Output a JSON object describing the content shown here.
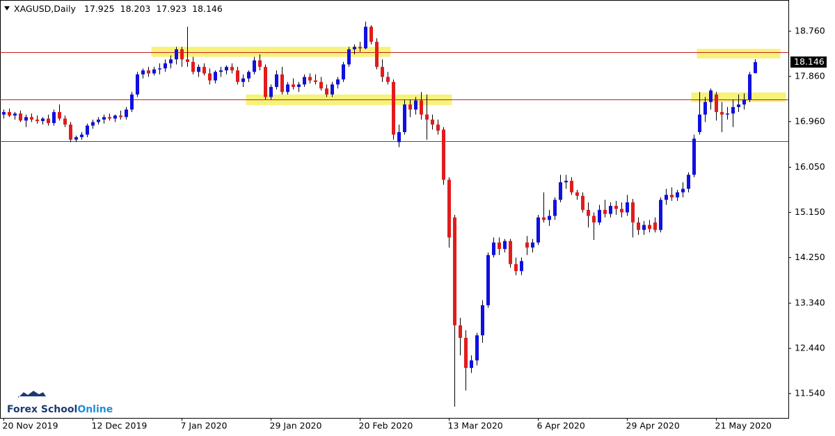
{
  "chart_data": {
    "type": "candlestick",
    "title": "XAGUSD,Daily",
    "categories": [
      "20 Nov 2019",
      null,
      null,
      null,
      null,
      null,
      null,
      null,
      null,
      null,
      null,
      null,
      null,
      null,
      null,
      null,
      "12 Dec 2019",
      null,
      null,
      null,
      null,
      null,
      null,
      null,
      null,
      null,
      null,
      null,
      null,
      null,
      null,
      null,
      "7 Jan 2020",
      null,
      null,
      null,
      null,
      null,
      null,
      null,
      null,
      null,
      null,
      null,
      null,
      null,
      null,
      null,
      "29 Jan 2020",
      null,
      null,
      null,
      null,
      null,
      null,
      null,
      null,
      null,
      null,
      null,
      null,
      null,
      null,
      null,
      "20 Feb 2020",
      null,
      null,
      null,
      null,
      null,
      null,
      null,
      null,
      null,
      null,
      null,
      null,
      null,
      null,
      null,
      "13 Mar 2020",
      null,
      null,
      null,
      null,
      null,
      null,
      null,
      null,
      null,
      null,
      null,
      null,
      null,
      null,
      null,
      "6 Apr 2020",
      null,
      null,
      null,
      null,
      null,
      null,
      null,
      null,
      null,
      null,
      null,
      null,
      null,
      null,
      null,
      "29 Apr 2020",
      null,
      null,
      null,
      null,
      null,
      null,
      null,
      null,
      null,
      null,
      null,
      null,
      null,
      null,
      null,
      "21 May 2020",
      null,
      null,
      null,
      null,
      null,
      null,
      null
    ],
    "ohlc": [
      [
        17.1,
        17.2,
        17.02,
        17.15
      ],
      [
        17.15,
        17.22,
        17.05,
        17.08
      ],
      [
        17.08,
        17.15,
        17.0,
        17.12
      ],
      [
        17.12,
        17.18,
        16.95,
        16.98
      ],
      [
        16.98,
        17.1,
        16.85,
        17.05
      ],
      [
        17.05,
        17.12,
        16.95,
        17.0
      ],
      [
        17.0,
        17.08,
        16.92,
        16.97
      ],
      [
        16.97,
        17.05,
        16.9,
        17.02
      ],
      [
        17.02,
        17.1,
        16.88,
        16.93
      ],
      [
        16.93,
        17.2,
        16.88,
        17.15
      ],
      [
        17.15,
        17.3,
        16.98,
        17.02
      ],
      [
        17.02,
        17.08,
        16.85,
        16.9
      ],
      [
        16.9,
        16.95,
        16.55,
        16.6
      ],
      [
        16.6,
        16.68,
        16.55,
        16.65
      ],
      [
        16.65,
        16.75,
        16.6,
        16.7
      ],
      [
        16.7,
        16.92,
        16.65,
        16.88
      ],
      [
        16.88,
        17.0,
        16.82,
        16.95
      ],
      [
        16.95,
        17.05,
        16.9,
        17.0
      ],
      [
        17.0,
        17.1,
        16.92,
        17.05
      ],
      [
        17.05,
        17.12,
        16.98,
        17.02
      ],
      [
        17.02,
        17.1,
        16.95,
        17.08
      ],
      [
        17.08,
        17.18,
        17.0,
        17.05
      ],
      [
        17.05,
        17.25,
        17.0,
        17.2
      ],
      [
        17.2,
        17.55,
        17.15,
        17.5
      ],
      [
        17.5,
        17.95,
        17.45,
        17.9
      ],
      [
        17.9,
        18.02,
        17.82,
        17.98
      ],
      [
        17.98,
        18.05,
        17.85,
        17.92
      ],
      [
        17.92,
        18.05,
        17.88,
        18.0
      ],
      [
        18.0,
        18.12,
        17.9,
        18.02
      ],
      [
        18.02,
        18.2,
        17.95,
        18.12
      ],
      [
        18.12,
        18.28,
        18.02,
        18.2
      ],
      [
        18.2,
        18.45,
        18.1,
        18.4
      ],
      [
        18.4,
        18.45,
        18.05,
        18.2
      ],
      [
        18.2,
        18.85,
        18.05,
        18.15
      ],
      [
        18.15,
        18.25,
        17.9,
        17.95
      ],
      [
        17.95,
        18.1,
        17.85,
        18.05
      ],
      [
        18.05,
        18.12,
        17.88,
        17.92
      ],
      [
        17.92,
        18.02,
        17.7,
        17.78
      ],
      [
        17.78,
        17.98,
        17.72,
        17.95
      ],
      [
        17.95,
        18.05,
        17.85,
        17.98
      ],
      [
        17.98,
        18.08,
        17.9,
        18.05
      ],
      [
        18.05,
        18.12,
        17.92,
        17.98
      ],
      [
        17.98,
        18.05,
        17.7,
        17.75
      ],
      [
        17.75,
        17.9,
        17.65,
        17.82
      ],
      [
        17.82,
        17.98,
        17.75,
        17.95
      ],
      [
        17.95,
        18.25,
        17.9,
        18.18
      ],
      [
        18.18,
        18.3,
        17.98,
        18.05
      ],
      [
        18.05,
        18.1,
        17.4,
        17.45
      ],
      [
        17.45,
        17.7,
        17.4,
        17.65
      ],
      [
        17.65,
        17.98,
        17.6,
        17.9
      ],
      [
        17.9,
        18.05,
        17.5,
        17.55
      ],
      [
        17.55,
        17.75,
        17.5,
        17.7
      ],
      [
        17.7,
        17.82,
        17.6,
        17.65
      ],
      [
        17.65,
        17.75,
        17.55,
        17.7
      ],
      [
        17.7,
        17.9,
        17.65,
        17.85
      ],
      [
        17.85,
        17.92,
        17.72,
        17.78
      ],
      [
        17.78,
        17.9,
        17.7,
        17.75
      ],
      [
        17.75,
        17.85,
        17.58,
        17.62
      ],
      [
        17.62,
        17.7,
        17.45,
        17.5
      ],
      [
        17.5,
        17.75,
        17.45,
        17.7
      ],
      [
        17.7,
        17.85,
        17.62,
        17.8
      ],
      [
        17.8,
        18.15,
        17.75,
        18.1
      ],
      [
        18.1,
        18.45,
        18.05,
        18.4
      ],
      [
        18.4,
        18.5,
        18.3,
        18.45
      ],
      [
        18.45,
        18.55,
        18.35,
        18.42
      ],
      [
        18.42,
        18.95,
        18.4,
        18.85
      ],
      [
        18.85,
        18.88,
        18.5,
        18.55
      ],
      [
        18.55,
        18.62,
        18.0,
        18.05
      ],
      [
        18.05,
        18.2,
        17.75,
        17.85
      ],
      [
        17.85,
        17.95,
        17.7,
        17.75
      ],
      [
        17.75,
        17.8,
        16.6,
        16.7
      ],
      [
        16.55,
        16.9,
        16.45,
        16.75
      ],
      [
        16.75,
        17.4,
        16.7,
        17.3
      ],
      [
        17.3,
        17.4,
        17.05,
        17.2
      ],
      [
        17.2,
        17.45,
        17.1,
        17.38
      ],
      [
        17.38,
        17.55,
        17.0,
        17.1
      ],
      [
        17.1,
        17.5,
        16.6,
        17.0
      ],
      [
        17.0,
        17.1,
        16.8,
        16.9
      ],
      [
        16.9,
        17.0,
        16.7,
        16.78
      ],
      [
        16.8,
        16.85,
        15.7,
        15.8
      ],
      [
        15.8,
        15.85,
        14.45,
        14.65
      ],
      [
        15.05,
        15.1,
        11.28,
        12.9
      ],
      [
        12.9,
        13.05,
        12.3,
        12.65
      ],
      [
        12.65,
        12.8,
        11.6,
        12.05
      ],
      [
        12.05,
        12.3,
        11.95,
        12.2
      ],
      [
        12.2,
        12.75,
        12.1,
        12.7
      ],
      [
        12.7,
        13.4,
        12.55,
        13.3
      ],
      [
        13.3,
        14.35,
        13.25,
        14.3
      ],
      [
        14.3,
        14.65,
        14.25,
        14.55
      ],
      [
        14.55,
        14.65,
        14.3,
        14.42
      ],
      [
        14.42,
        14.62,
        14.35,
        14.58
      ],
      [
        14.58,
        14.62,
        14.05,
        14.12
      ],
      [
        14.12,
        14.25,
        13.9,
        13.98
      ],
      [
        13.98,
        14.25,
        13.9,
        14.18
      ],
      [
        14.55,
        14.68,
        14.3,
        14.45
      ],
      [
        14.45,
        14.62,
        14.35,
        14.55
      ],
      [
        14.55,
        15.1,
        14.5,
        15.05
      ],
      [
        15.05,
        15.55,
        14.95,
        15.0
      ],
      [
        15.0,
        15.2,
        14.88,
        15.08
      ],
      [
        15.08,
        15.45,
        15.0,
        15.4
      ],
      [
        15.4,
        15.9,
        15.35,
        15.75
      ],
      [
        15.75,
        15.9,
        15.62,
        15.78
      ],
      [
        15.78,
        15.85,
        15.5,
        15.55
      ],
      [
        15.55,
        15.6,
        15.4,
        15.48
      ],
      [
        15.48,
        15.55,
        15.15,
        15.2
      ],
      [
        15.2,
        15.35,
        14.85,
        15.08
      ],
      [
        15.08,
        15.15,
        14.6,
        14.95
      ],
      [
        14.95,
        15.3,
        14.9,
        15.2
      ],
      [
        15.2,
        15.4,
        15.05,
        15.12
      ],
      [
        15.12,
        15.35,
        15.05,
        15.28
      ],
      [
        15.28,
        15.38,
        15.1,
        15.22
      ],
      [
        15.22,
        15.35,
        15.05,
        15.15
      ],
      [
        15.15,
        15.5,
        15.08,
        15.35
      ],
      [
        15.35,
        15.42,
        14.65,
        14.95
      ],
      [
        14.95,
        15.05,
        14.7,
        14.8
      ],
      [
        14.8,
        14.98,
        14.7,
        14.9
      ],
      [
        14.9,
        15.0,
        14.75,
        14.82
      ],
      [
        14.95,
        15.05,
        14.75,
        14.8
      ],
      [
        14.8,
        15.45,
        14.75,
        15.4
      ],
      [
        15.4,
        15.62,
        15.3,
        15.5
      ],
      [
        15.5,
        15.65,
        15.38,
        15.45
      ],
      [
        15.45,
        15.6,
        15.38,
        15.55
      ],
      [
        15.55,
        15.75,
        15.45,
        15.62
      ],
      [
        15.62,
        15.95,
        15.55,
        15.9
      ],
      [
        15.9,
        16.7,
        15.85,
        16.62
      ],
      [
        16.75,
        17.55,
        16.7,
        17.1
      ],
      [
        17.1,
        17.45,
        16.95,
        17.35
      ],
      [
        17.35,
        17.62,
        17.2,
        17.58
      ],
      [
        17.5,
        17.55,
        16.98,
        17.15
      ],
      [
        17.15,
        17.35,
        16.75,
        17.1
      ],
      [
        17.1,
        17.25,
        17.0,
        17.12
      ],
      [
        17.12,
        17.4,
        16.85,
        17.25
      ],
      [
        17.25,
        17.5,
        17.15,
        17.3
      ],
      [
        17.3,
        17.52,
        17.2,
        17.4
      ],
      [
        17.4,
        17.95,
        17.35,
        17.9
      ],
      [
        17.925,
        18.203,
        17.923,
        18.146
      ]
    ],
    "up_color": "#1010e0",
    "down_color": "#e31b1b",
    "wick_color": "#000000",
    "ylim": [
      11.054,
      19.383
    ],
    "yticks": [
      {
        "value": 18.76,
        "label": "18.760"
      },
      {
        "value": 17.86,
        "label": "17.860"
      },
      {
        "value": 16.96,
        "label": "16.960"
      },
      {
        "value": 16.05,
        "label": "16.050"
      },
      {
        "value": 15.15,
        "label": "15.150"
      },
      {
        "value": 14.25,
        "label": "14.250"
      },
      {
        "value": 13.34,
        "label": "13.340"
      },
      {
        "value": 12.44,
        "label": "12.440"
      },
      {
        "value": 11.54,
        "label": "11.540"
      }
    ],
    "levels": [
      18.34,
      17.4,
      16.57
    ],
    "level_color": "#c81e1e",
    "zones": [
      {
        "x": [
          27,
          69
        ],
        "y": [
          18.25,
          18.45
        ]
      },
      {
        "x": [
          44,
          80
        ],
        "y": [
          17.29,
          17.5
        ]
      },
      {
        "x": [
          125,
          139
        ],
        "y": [
          18.22,
          18.41
        ]
      },
      {
        "x": [
          124,
          140
        ],
        "y": [
          17.35,
          17.54
        ]
      }
    ],
    "zone_color": "#f7f27a",
    "watermark": {
      "text": "Forex School",
      "highlight": "Online"
    }
  }
}
